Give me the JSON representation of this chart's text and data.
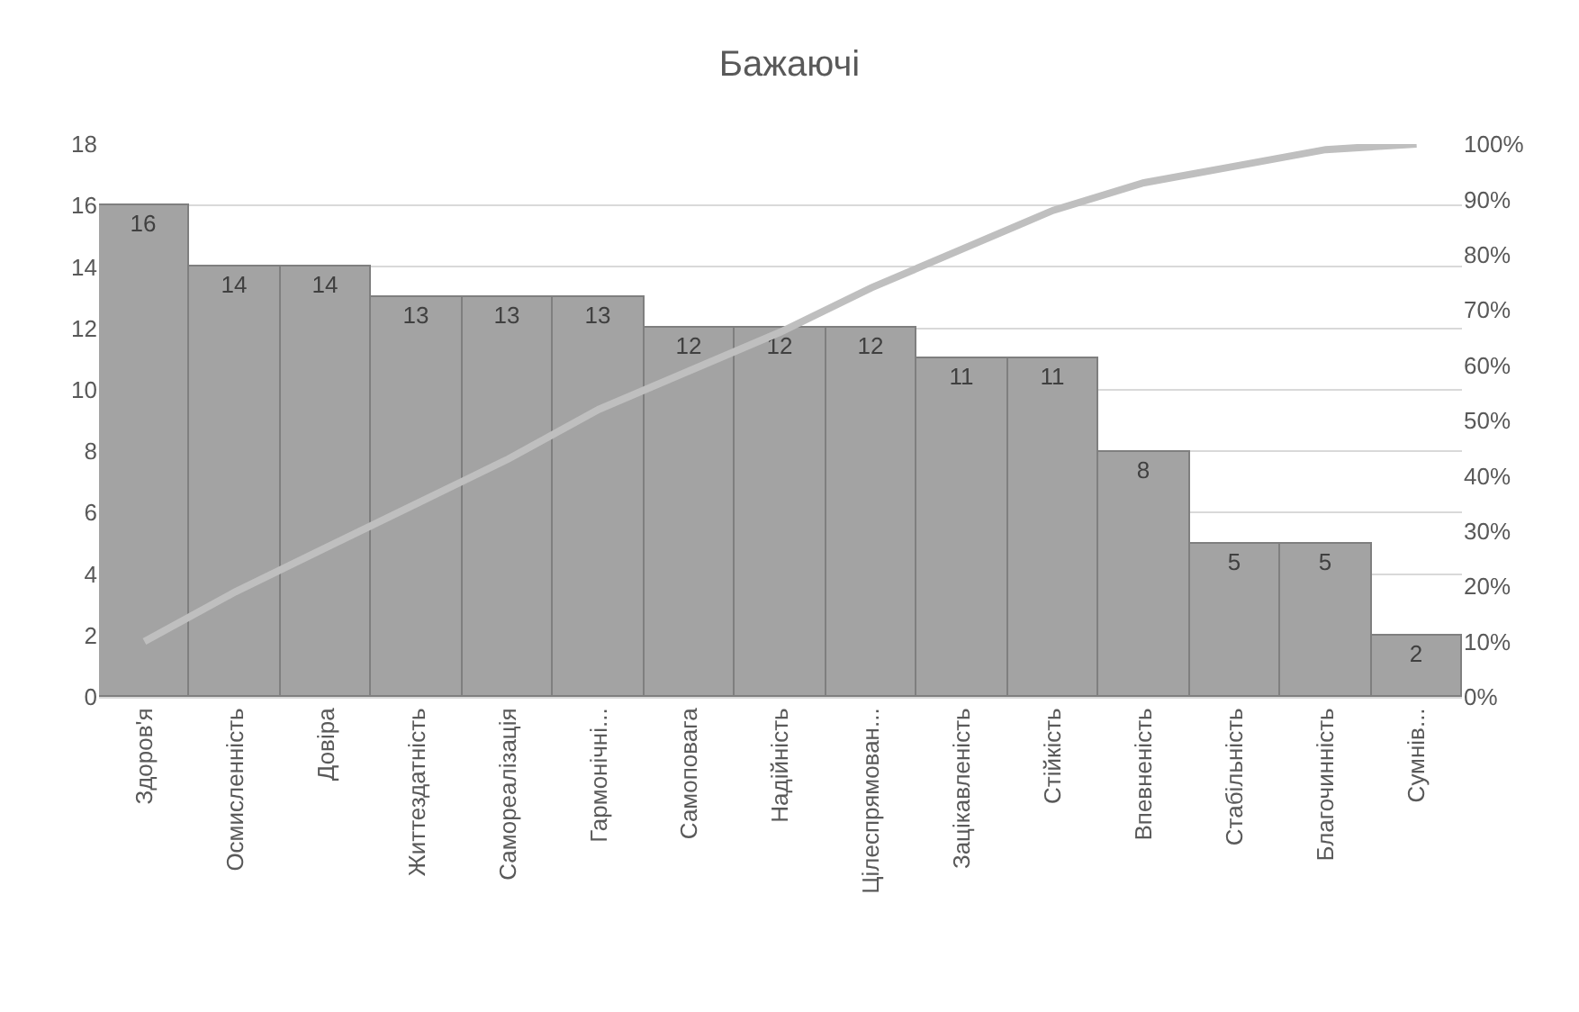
{
  "chart_data": {
    "type": "bar",
    "title": "Бажаючі",
    "categories": [
      "Здоров'я",
      "Осмисленність",
      "Довіра",
      "Життездатність",
      "Самореалізація",
      "Гармонічні...",
      "Самоповага",
      "Надійність",
      "Цілеспрямован...",
      "Зацікавленість",
      "Стійкість",
      "Впевненість",
      "Стабільність",
      "Благочинність",
      "Сумнів..."
    ],
    "series": [
      {
        "color": "#a3a3a3",
        "values": [
          16,
          14,
          14,
          13,
          13,
          13,
          12,
          12,
          12,
          11,
          11,
          8,
          5,
          5,
          2
        ],
        "value_labels": [
          "16",
          "14",
          "14",
          "13",
          "13",
          "13",
          "12",
          "12",
          "12",
          "11",
          "11",
          "8",
          "5",
          "5",
          "2"
        ]
      },
      {
        "type": "line",
        "axis": "y2",
        "color": "#bfbfbf",
        "values": [
          10,
          19,
          27,
          35,
          43,
          52,
          59,
          66,
          74,
          81,
          88,
          93,
          96,
          99,
          100
        ]
      }
    ],
    "ylim": [
      0,
      18
    ],
    "yticks": [
      0,
      2,
      4,
      6,
      8,
      10,
      12,
      14,
      16,
      18
    ],
    "y2lim": [
      0,
      100
    ],
    "y2ticks": [
      {
        "value": 0,
        "label": "0%"
      },
      {
        "value": 10,
        "label": "10%"
      },
      {
        "value": 20,
        "label": "20%"
      },
      {
        "value": 30,
        "label": "30%"
      },
      {
        "value": 40,
        "label": "40%"
      },
      {
        "value": 50,
        "label": "50%"
      },
      {
        "value": 60,
        "label": "60%"
      },
      {
        "value": 70,
        "label": "70%"
      },
      {
        "value": 80,
        "label": "80%"
      },
      {
        "value": 90,
        "label": "90%"
      },
      {
        "value": 100,
        "label": "100%"
      }
    ],
    "grid": "y",
    "legend": false,
    "marker": "none",
    "line_style": "solid"
  }
}
